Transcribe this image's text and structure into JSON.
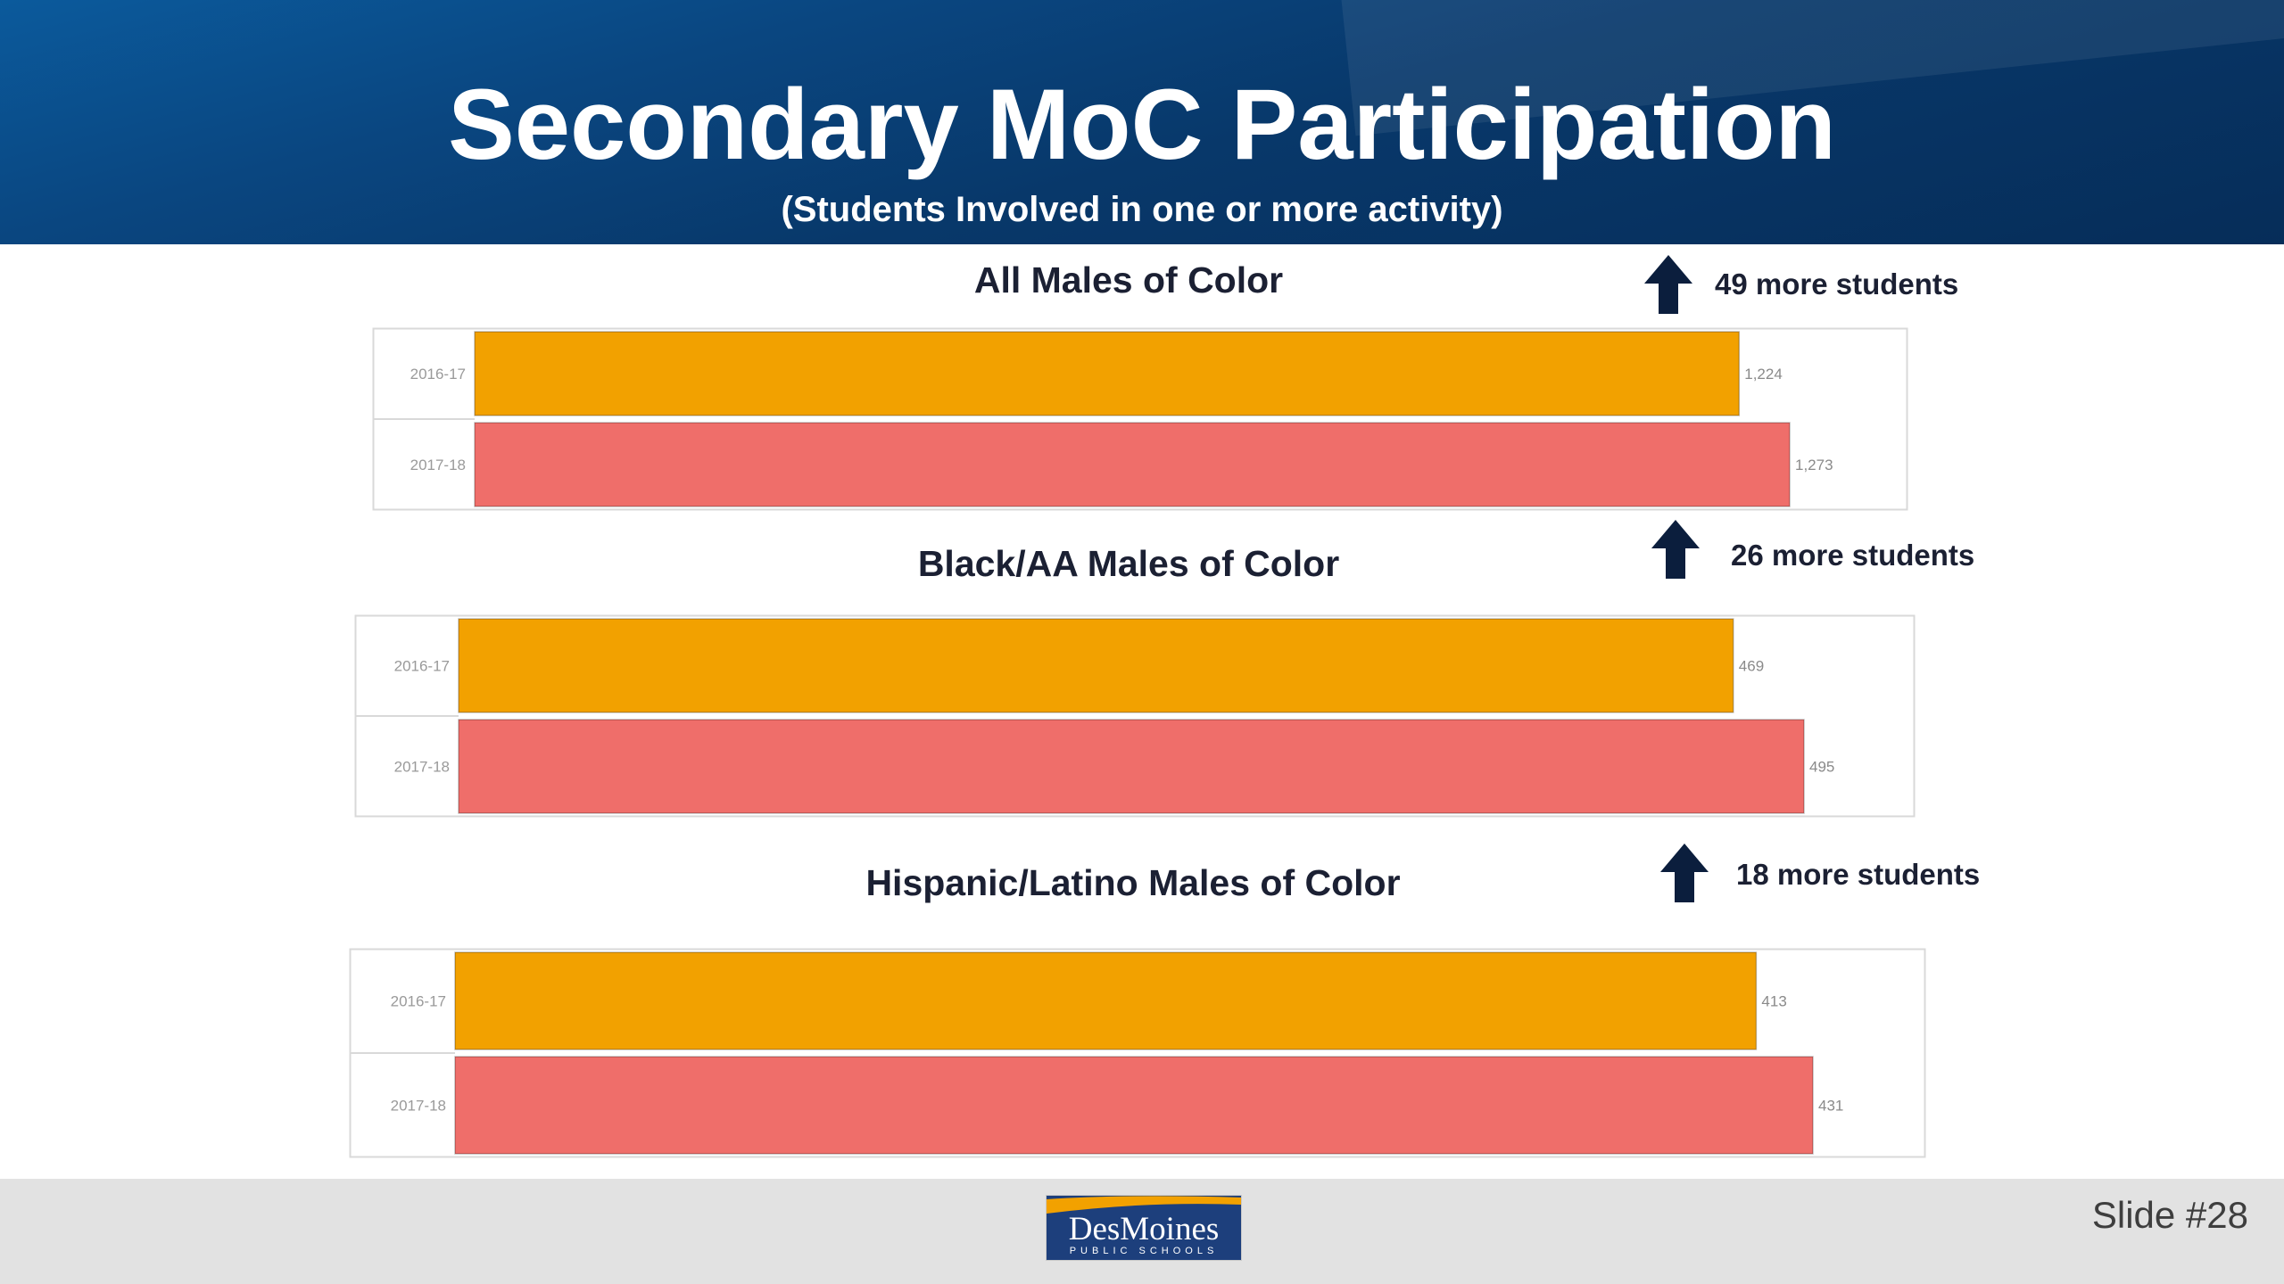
{
  "header": {
    "title": "Secondary MoC Participation",
    "subtitle": "(Students Involved in one or more activity)"
  },
  "colors": {
    "bar_2016_17": "#f2a100",
    "bar_2017_18": "#ef6e6a",
    "banner": "#083a6e",
    "footer": "#e2e2e2",
    "arrow": "#0b1e3d"
  },
  "chart_data": [
    {
      "type": "bar",
      "orientation": "horizontal",
      "title": "All Males of Color",
      "categories": [
        "2016-17",
        "2017-18"
      ],
      "values": [
        1224,
        1273
      ],
      "data_labels": [
        "1,224",
        "1,273"
      ],
      "annotation": {
        "icon": "arrow-up-icon",
        "text": "49 more  students"
      }
    },
    {
      "type": "bar",
      "orientation": "horizontal",
      "title": "Black/AA Males of Color",
      "categories": [
        "2016-17",
        "2017-18"
      ],
      "values": [
        469,
        495
      ],
      "data_labels": [
        "469",
        "495"
      ],
      "annotation": {
        "icon": "arrow-up-icon",
        "text": "26 more  students"
      }
    },
    {
      "type": "bar",
      "orientation": "horizontal",
      "title": "Hispanic/Latino Males of Color",
      "categories": [
        "2016-17",
        "2017-18"
      ],
      "values": [
        413,
        431
      ],
      "data_labels": [
        "413",
        "431"
      ],
      "annotation": {
        "icon": "arrow-up-icon",
        "text": "18 more students"
      }
    }
  ],
  "footer": {
    "logo_name": "DesMoines",
    "logo_sub": "PUBLIC SCHOOLS",
    "slide_number": "Slide #28"
  }
}
